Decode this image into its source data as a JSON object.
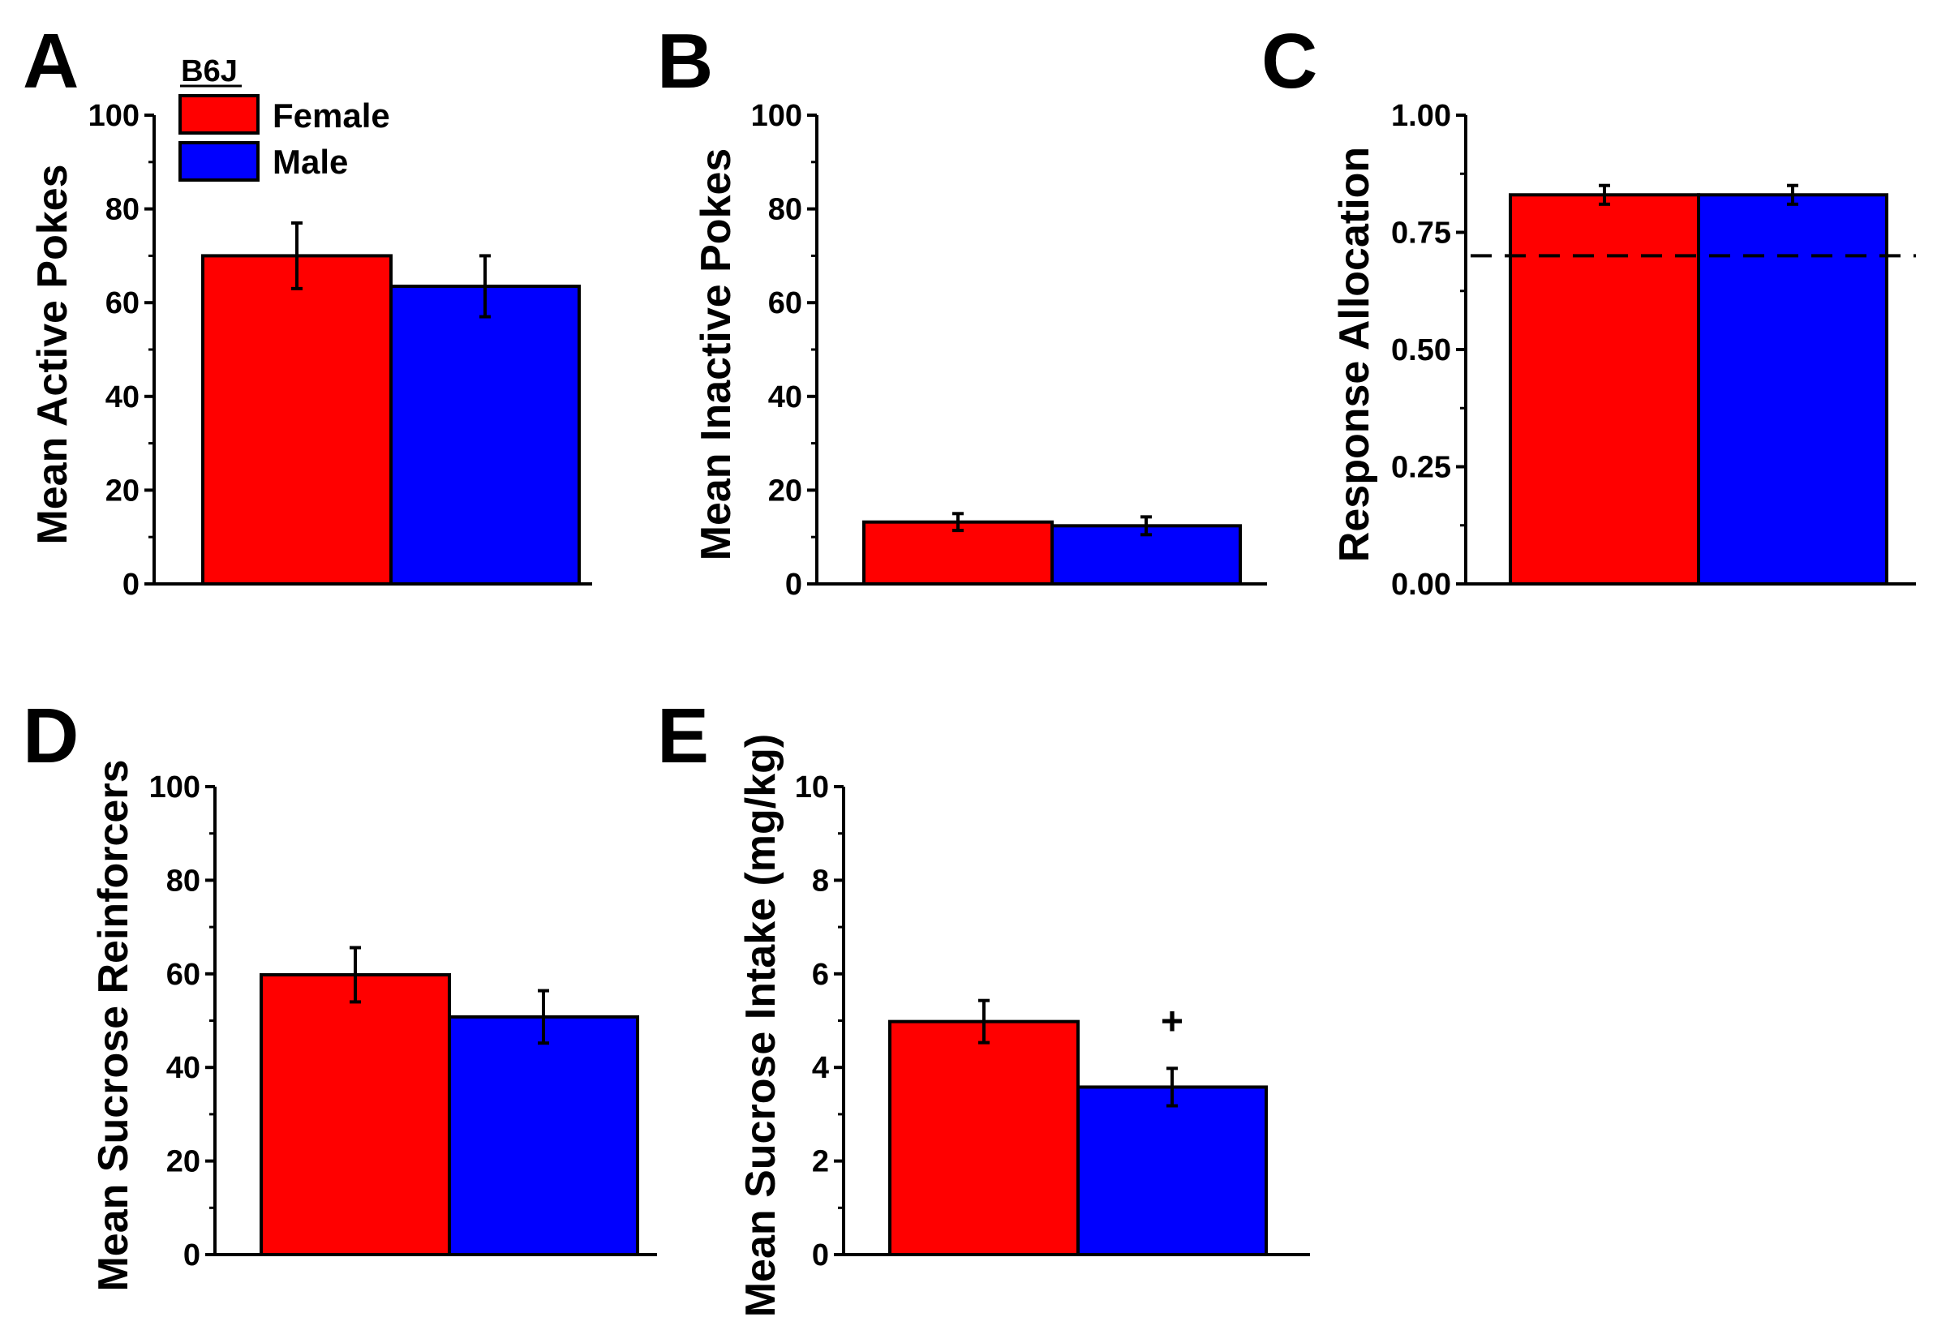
{
  "legend": {
    "title": "B6J",
    "entries": [
      {
        "label": "Female",
        "color": "#ff0000"
      },
      {
        "label": "Male",
        "color": "#0000ff"
      }
    ]
  },
  "chart_data": [
    {
      "panel": "A",
      "type": "bar",
      "categories": [
        "Female",
        "Male"
      ],
      "values": [
        70,
        63.5
      ],
      "errors": [
        7,
        6.5
      ],
      "colors": [
        "#ff0000",
        "#0000ff"
      ],
      "ylabel": "Mean Active Pokes",
      "xlabel": "",
      "ylim": [
        0,
        100
      ],
      "yticks": [
        "0",
        "20",
        "40",
        "60",
        "80",
        "100"
      ],
      "grid": false
    },
    {
      "panel": "B",
      "type": "bar",
      "categories": [
        "Female",
        "Male"
      ],
      "values": [
        13.2,
        12.4
      ],
      "errors": [
        1.8,
        1.9
      ],
      "colors": [
        "#ff0000",
        "#0000ff"
      ],
      "ylabel": "Mean Inactive Pokes",
      "xlabel": "",
      "ylim": [
        0,
        100
      ],
      "yticks": [
        "0",
        "20",
        "40",
        "60",
        "80",
        "100"
      ],
      "grid": false
    },
    {
      "panel": "C",
      "type": "bar",
      "categories": [
        "Female",
        "Male"
      ],
      "values": [
        0.83,
        0.83
      ],
      "errors": [
        0.02,
        0.02
      ],
      "colors": [
        "#ff0000",
        "#0000ff"
      ],
      "ylabel": "Response Allocation",
      "xlabel": "",
      "ylim": [
        0,
        1
      ],
      "yticks": [
        "0.00",
        "0.25",
        "0.50",
        "0.75",
        "1.00"
      ],
      "reference_line": 0.7,
      "grid": false
    },
    {
      "panel": "D",
      "type": "bar",
      "categories": [
        "Female",
        "Male"
      ],
      "values": [
        59.8,
        50.8
      ],
      "errors": [
        5.8,
        5.6
      ],
      "colors": [
        "#ff0000",
        "#0000ff"
      ],
      "ylabel": "Mean Sucrose Reinforcers",
      "xlabel": "",
      "ylim": [
        0,
        100
      ],
      "yticks": [
        "0",
        "20",
        "40",
        "60",
        "80",
        "100"
      ],
      "grid": false
    },
    {
      "panel": "E",
      "type": "bar",
      "categories": [
        "Female",
        "Male"
      ],
      "values": [
        4.98,
        3.58
      ],
      "errors": [
        0.45,
        0.4
      ],
      "colors": [
        "#ff0000",
        "#0000ff"
      ],
      "ylabel": "Mean Sucrose Intake (mg/kg)",
      "xlabel": "",
      "ylim": [
        0,
        10
      ],
      "yticks": [
        "0",
        "2",
        "4",
        "6",
        "8",
        "10"
      ],
      "annotation": "+",
      "grid": false
    }
  ]
}
